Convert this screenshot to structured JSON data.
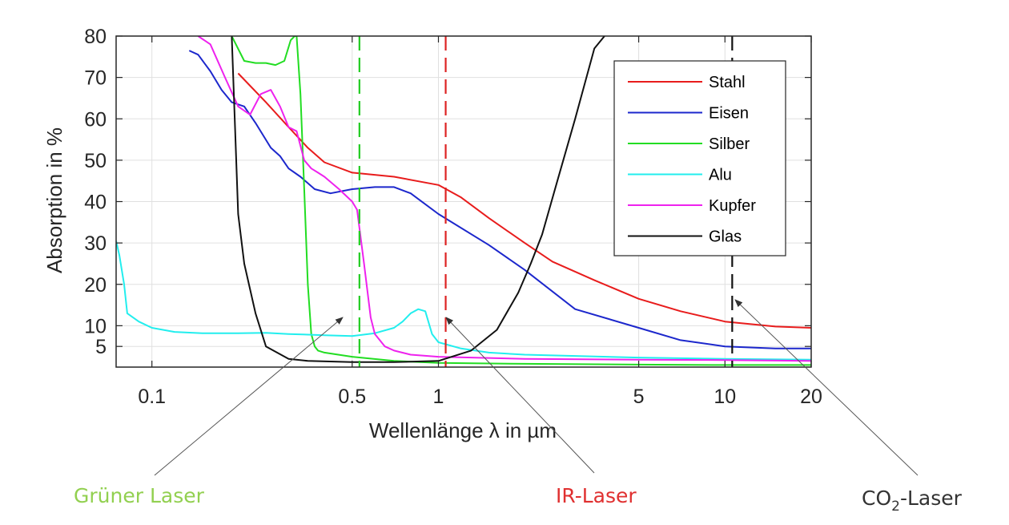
{
  "chart_data": {
    "type": "line",
    "xlabel": "Wellenlänge λ in µm",
    "ylabel": "Absorption in %",
    "xscale": "log",
    "xlim": [
      0.075,
      20
    ],
    "ylim": [
      0,
      80
    ],
    "xticks": [
      {
        "value": 0.1,
        "label": "0.1"
      },
      {
        "value": 0.5,
        "label": "0.5"
      },
      {
        "value": 1,
        "label": "1"
      },
      {
        "value": 5,
        "label": "5"
      },
      {
        "value": 10,
        "label": "10"
      },
      {
        "value": 20,
        "label": "20"
      }
    ],
    "yticks": [
      {
        "value": 5,
        "label": "5"
      },
      {
        "value": 10,
        "label": "10"
      },
      {
        "value": 20,
        "label": "20"
      },
      {
        "value": 30,
        "label": "30"
      },
      {
        "value": 40,
        "label": "40"
      },
      {
        "value": 50,
        "label": "50"
      },
      {
        "value": 60,
        "label": "60"
      },
      {
        "value": 70,
        "label": "70"
      },
      {
        "value": 80,
        "label": "80"
      }
    ],
    "grid": true,
    "legend_position": "top-right",
    "series": [
      {
        "name": "Stahl",
        "color": "#e81c1c",
        "x": [
          0.2,
          0.25,
          0.3,
          0.35,
          0.4,
          0.5,
          0.7,
          1.0,
          1.2,
          1.5,
          2.0,
          2.5,
          3.5,
          5.0,
          7.0,
          10.0,
          15.0,
          20.0
        ],
        "y": [
          71,
          64,
          58,
          53,
          49.5,
          47,
          46,
          44,
          41,
          36,
          30,
          25.5,
          21,
          16.5,
          13.5,
          11,
          9.8,
          9.5
        ]
      },
      {
        "name": "Eisen",
        "color": "#1c27cc",
        "x": [
          0.135,
          0.145,
          0.16,
          0.175,
          0.19,
          0.21,
          0.23,
          0.26,
          0.28,
          0.3,
          0.33,
          0.37,
          0.42,
          0.5,
          0.6,
          0.7,
          0.8,
          1.0,
          1.5,
          2.0,
          3.0,
          5.0,
          7.0,
          10.0,
          15.0,
          20.0
        ],
        "y": [
          76.5,
          75.5,
          71.5,
          67,
          64,
          63,
          59,
          53,
          51,
          48,
          46,
          43,
          42,
          43,
          43.5,
          43.5,
          42,
          37,
          29.5,
          23.5,
          14,
          9.5,
          6.5,
          5,
          4.5,
          4.5
        ]
      },
      {
        "name": "Silber",
        "color": "#22dd22",
        "x": [
          0.19,
          0.21,
          0.23,
          0.25,
          0.27,
          0.29,
          0.305,
          0.315,
          0.32,
          0.33,
          0.34,
          0.35,
          0.36,
          0.37,
          0.38,
          0.4,
          0.5,
          0.7,
          1.0,
          2.0,
          5.0,
          10.0,
          20.0
        ],
        "y": [
          80,
          74,
          73.5,
          73.5,
          73,
          74,
          79,
          80,
          80,
          66,
          43,
          20,
          8,
          5,
          4,
          3.5,
          2.5,
          1.5,
          1,
          0.8,
          0.6,
          0.5,
          0.5
        ]
      },
      {
        "name": "Alu",
        "color": "#22eeee",
        "x": [
          0.075,
          0.077,
          0.08,
          0.082,
          0.09,
          0.1,
          0.12,
          0.15,
          0.2,
          0.25,
          0.3,
          0.4,
          0.5,
          0.6,
          0.7,
          0.75,
          0.8,
          0.85,
          0.9,
          0.95,
          1.0,
          1.2,
          1.5,
          2.0,
          5.0,
          10.0,
          20.0
        ],
        "y": [
          30.5,
          27,
          20,
          13,
          11,
          9.5,
          8.5,
          8.2,
          8.2,
          8.3,
          8,
          7.7,
          7.5,
          8.2,
          9.5,
          11,
          13,
          14,
          13.5,
          8,
          6,
          4.5,
          3.5,
          3,
          2.3,
          2,
          1.8
        ]
      },
      {
        "name": "Kupfer",
        "color": "#ee22ee",
        "x": [
          0.145,
          0.16,
          0.18,
          0.2,
          0.22,
          0.24,
          0.26,
          0.28,
          0.3,
          0.32,
          0.34,
          0.36,
          0.38,
          0.4,
          0.45,
          0.5,
          0.52,
          0.55,
          0.58,
          0.6,
          0.65,
          0.7,
          0.8,
          1.0,
          2.0,
          5.0,
          10.0,
          20.0
        ],
        "y": [
          80,
          78,
          70,
          63,
          61,
          66,
          67,
          63,
          58,
          57,
          50,
          48,
          47,
          46,
          43,
          40,
          38,
          25,
          12,
          8,
          5,
          4,
          3,
          2.5,
          2,
          1.8,
          1.7,
          1.5
        ]
      },
      {
        "name": "Glas",
        "color": "#111111",
        "x": [
          0.19,
          0.195,
          0.2,
          0.21,
          0.23,
          0.25,
          0.3,
          0.35,
          0.5,
          0.7,
          1.0,
          1.3,
          1.6,
          1.9,
          2.1,
          2.3,
          2.6,
          3.0,
          3.5,
          3.8
        ],
        "y": [
          80,
          58,
          37,
          25,
          13,
          5,
          2,
          1.5,
          1.2,
          1.2,
          1.5,
          4,
          9,
          18,
          25,
          32,
          45,
          60,
          77,
          80
        ]
      }
    ],
    "vlines": [
      {
        "x": 0.53,
        "color": "#22cc22"
      },
      {
        "x": 1.06,
        "color": "#dd2222"
      },
      {
        "x": 10.6,
        "color": "#111111"
      }
    ]
  },
  "annotations": {
    "green": {
      "text": "Grüner Laser",
      "color": "#92d050"
    },
    "ir": {
      "text": "IR-Laser",
      "color": "#e03030"
    },
    "co2": {
      "prefix": "CO",
      "sub": "2",
      "suffix": "-Laser",
      "color": "#333333"
    }
  }
}
